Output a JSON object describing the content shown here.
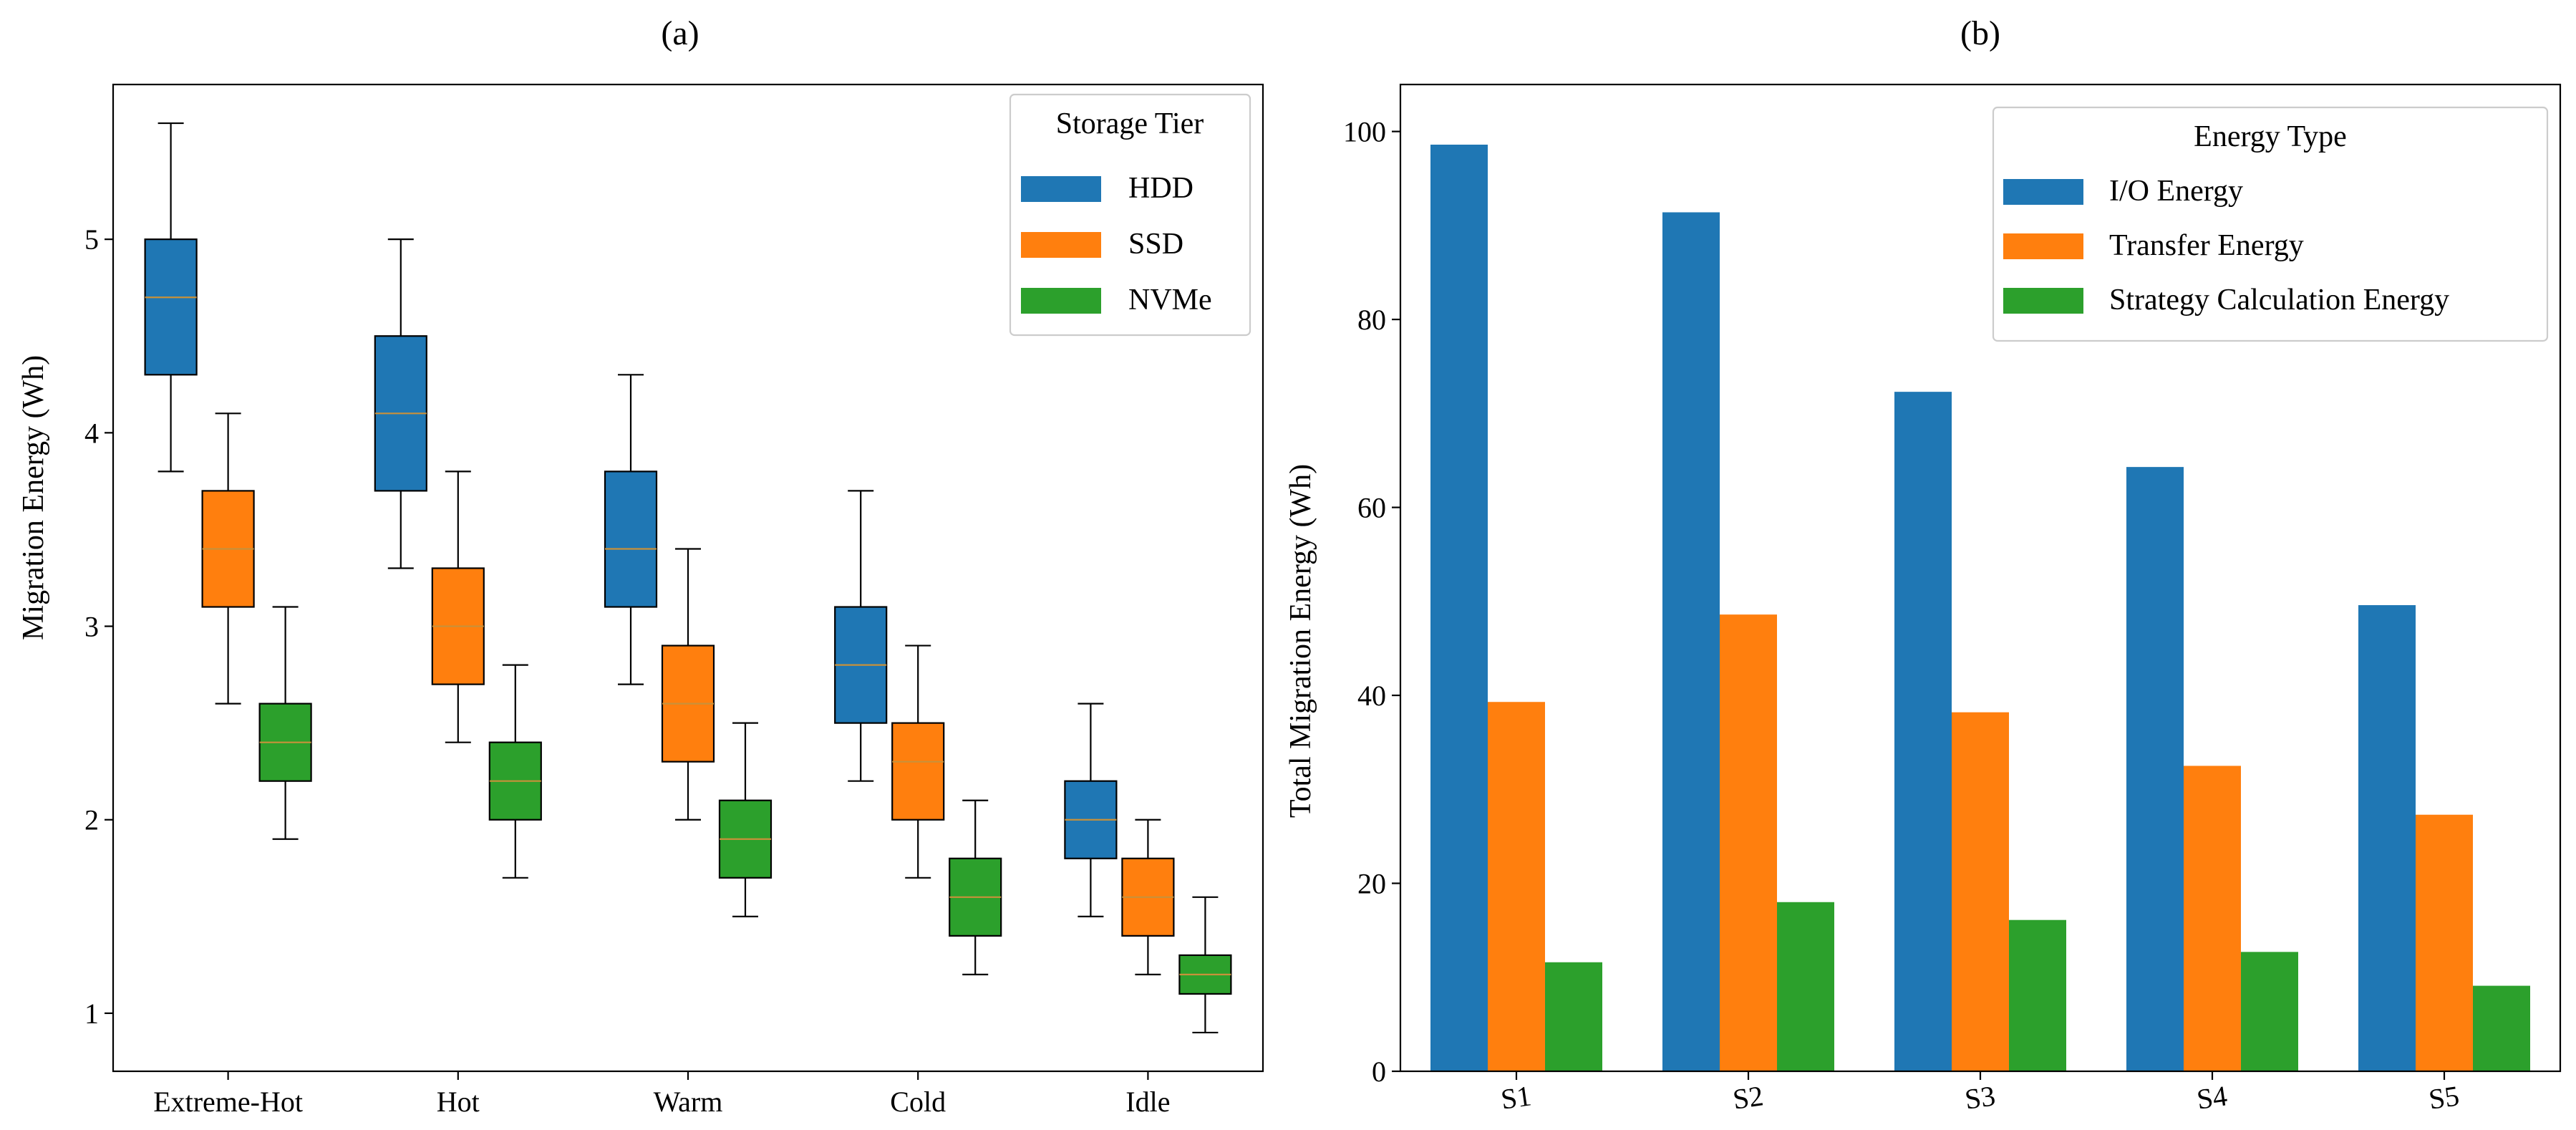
{
  "chart_data": [
    {
      "type": "box",
      "panel_label": "(a)",
      "title": "",
      "xlabel": "",
      "ylabel": "Migration Energy (Wh)",
      "ylim": [
        0.7,
        5.8
      ],
      "yticks": [
        1,
        2,
        3,
        4,
        5
      ],
      "categories": [
        "Extreme-Hot",
        "Hot",
        "Warm",
        "Cold",
        "Idle"
      ],
      "legend_title": "Storage Tier",
      "series": [
        {
          "name": "HDD",
          "color": "#1f77b4",
          "boxes": [
            {
              "min": 3.8,
              "q1": 4.3,
              "median": 4.7,
              "q3": 5.0,
              "max": 5.6
            },
            {
              "min": 3.3,
              "q1": 3.7,
              "median": 4.1,
              "q3": 4.5,
              "max": 5.0
            },
            {
              "min": 2.7,
              "q1": 3.1,
              "median": 3.4,
              "q3": 3.8,
              "max": 4.3
            },
            {
              "min": 2.2,
              "q1": 2.5,
              "median": 2.8,
              "q3": 3.1,
              "max": 3.7
            },
            {
              "min": 1.5,
              "q1": 1.8,
              "median": 2.0,
              "q3": 2.2,
              "max": 2.6
            }
          ]
        },
        {
          "name": "SSD",
          "color": "#ff7f0e",
          "boxes": [
            {
              "min": 2.6,
              "q1": 3.1,
              "median": 3.4,
              "q3": 3.7,
              "max": 4.1
            },
            {
              "min": 2.4,
              "q1": 2.7,
              "median": 3.0,
              "q3": 3.3,
              "max": 3.8
            },
            {
              "min": 2.0,
              "q1": 2.3,
              "median": 2.6,
              "q3": 2.9,
              "max": 3.4
            },
            {
              "min": 1.7,
              "q1": 2.0,
              "median": 2.3,
              "q3": 2.5,
              "max": 2.9
            },
            {
              "min": 1.2,
              "q1": 1.4,
              "median": 1.6,
              "q3": 1.8,
              "max": 2.0
            }
          ]
        },
        {
          "name": "NVMe",
          "color": "#2ca02c",
          "boxes": [
            {
              "min": 1.9,
              "q1": 2.2,
              "median": 2.4,
              "q3": 2.6,
              "max": 3.1
            },
            {
              "min": 1.7,
              "q1": 2.0,
              "median": 2.2,
              "q3": 2.4,
              "max": 2.8
            },
            {
              "min": 1.5,
              "q1": 1.7,
              "median": 1.9,
              "q3": 2.1,
              "max": 2.5
            },
            {
              "min": 1.2,
              "q1": 1.4,
              "median": 1.6,
              "q3": 1.8,
              "max": 2.1
            },
            {
              "min": 0.9,
              "q1": 1.1,
              "median": 1.2,
              "q3": 1.3,
              "max": 1.6
            }
          ]
        }
      ]
    },
    {
      "type": "bar",
      "panel_label": "(b)",
      "title": "",
      "xlabel": "",
      "ylabel": "Total Migration Energy (Wh)",
      "ylim": [
        0,
        105
      ],
      "yticks": [
        0,
        20,
        40,
        60,
        80,
        100
      ],
      "categories": [
        "S1",
        "S2",
        "S3",
        "S4",
        "S5"
      ],
      "legend_title": "Energy Type",
      "series": [
        {
          "name": "I/O Energy",
          "color": "#1f77b4",
          "values": [
            98.6,
            91.4,
            72.3,
            64.3,
            49.6
          ]
        },
        {
          "name": "Transfer Energy",
          "color": "#ff7f0e",
          "values": [
            39.3,
            48.6,
            38.2,
            32.5,
            27.3
          ]
        },
        {
          "name": "Strategy Calculation Energy",
          "color": "#2ca02c",
          "values": [
            11.6,
            18.0,
            16.1,
            12.7,
            9.1
          ]
        }
      ]
    }
  ]
}
